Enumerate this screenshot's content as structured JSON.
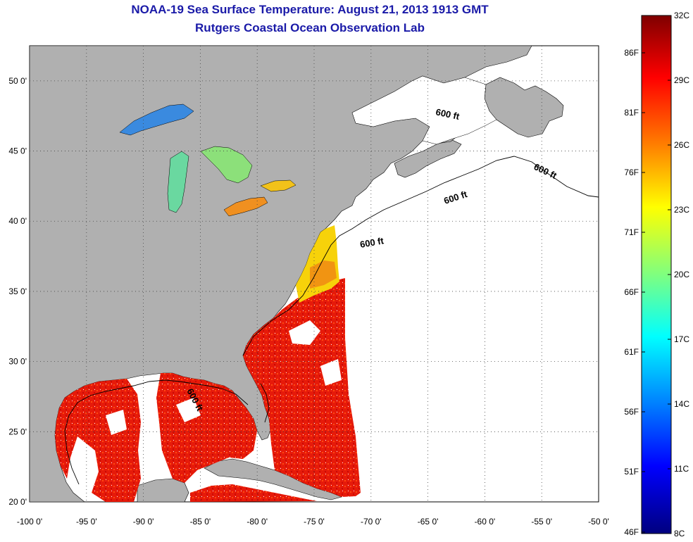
{
  "title_line1": "NOAA-19 Sea Surface Temperature:  August 21, 2013 1913 GMT",
  "title_line2": "Rutgers Coastal Ocean Observation Lab",
  "map": {
    "x_ticks": [
      "-100 0'",
      "-95 0'",
      "-90 0'",
      "-85 0'",
      "-80 0'",
      "-75 0'",
      "-70 0'",
      "-65 0'",
      "-60 0'",
      "-55 0'",
      "-50 0'"
    ],
    "y_ticks": [
      "50 0'",
      "45 0'",
      "40 0'",
      "35 0'",
      "30 0'",
      "25 0'",
      "20 0'"
    ],
    "contour_label": "600 ft",
    "land_color": "#b0b0b0",
    "ocean_nodata_color": "#ffffff"
  },
  "colorbar": {
    "celsius_labels": [
      "32C",
      "29C",
      "26C",
      "23C",
      "20C",
      "17C",
      "14C",
      "11C",
      "8C"
    ],
    "fahrenheit_labels": [
      "86F",
      "81F",
      "76F",
      "71F",
      "66F",
      "61F",
      "56F",
      "51F",
      "46F"
    ],
    "colors": [
      "#7f0000",
      "#ff0000",
      "#ff7f00",
      "#ffff00",
      "#7fff7f",
      "#00ffff",
      "#007fff",
      "#0000ff",
      "#00007f"
    ]
  }
}
